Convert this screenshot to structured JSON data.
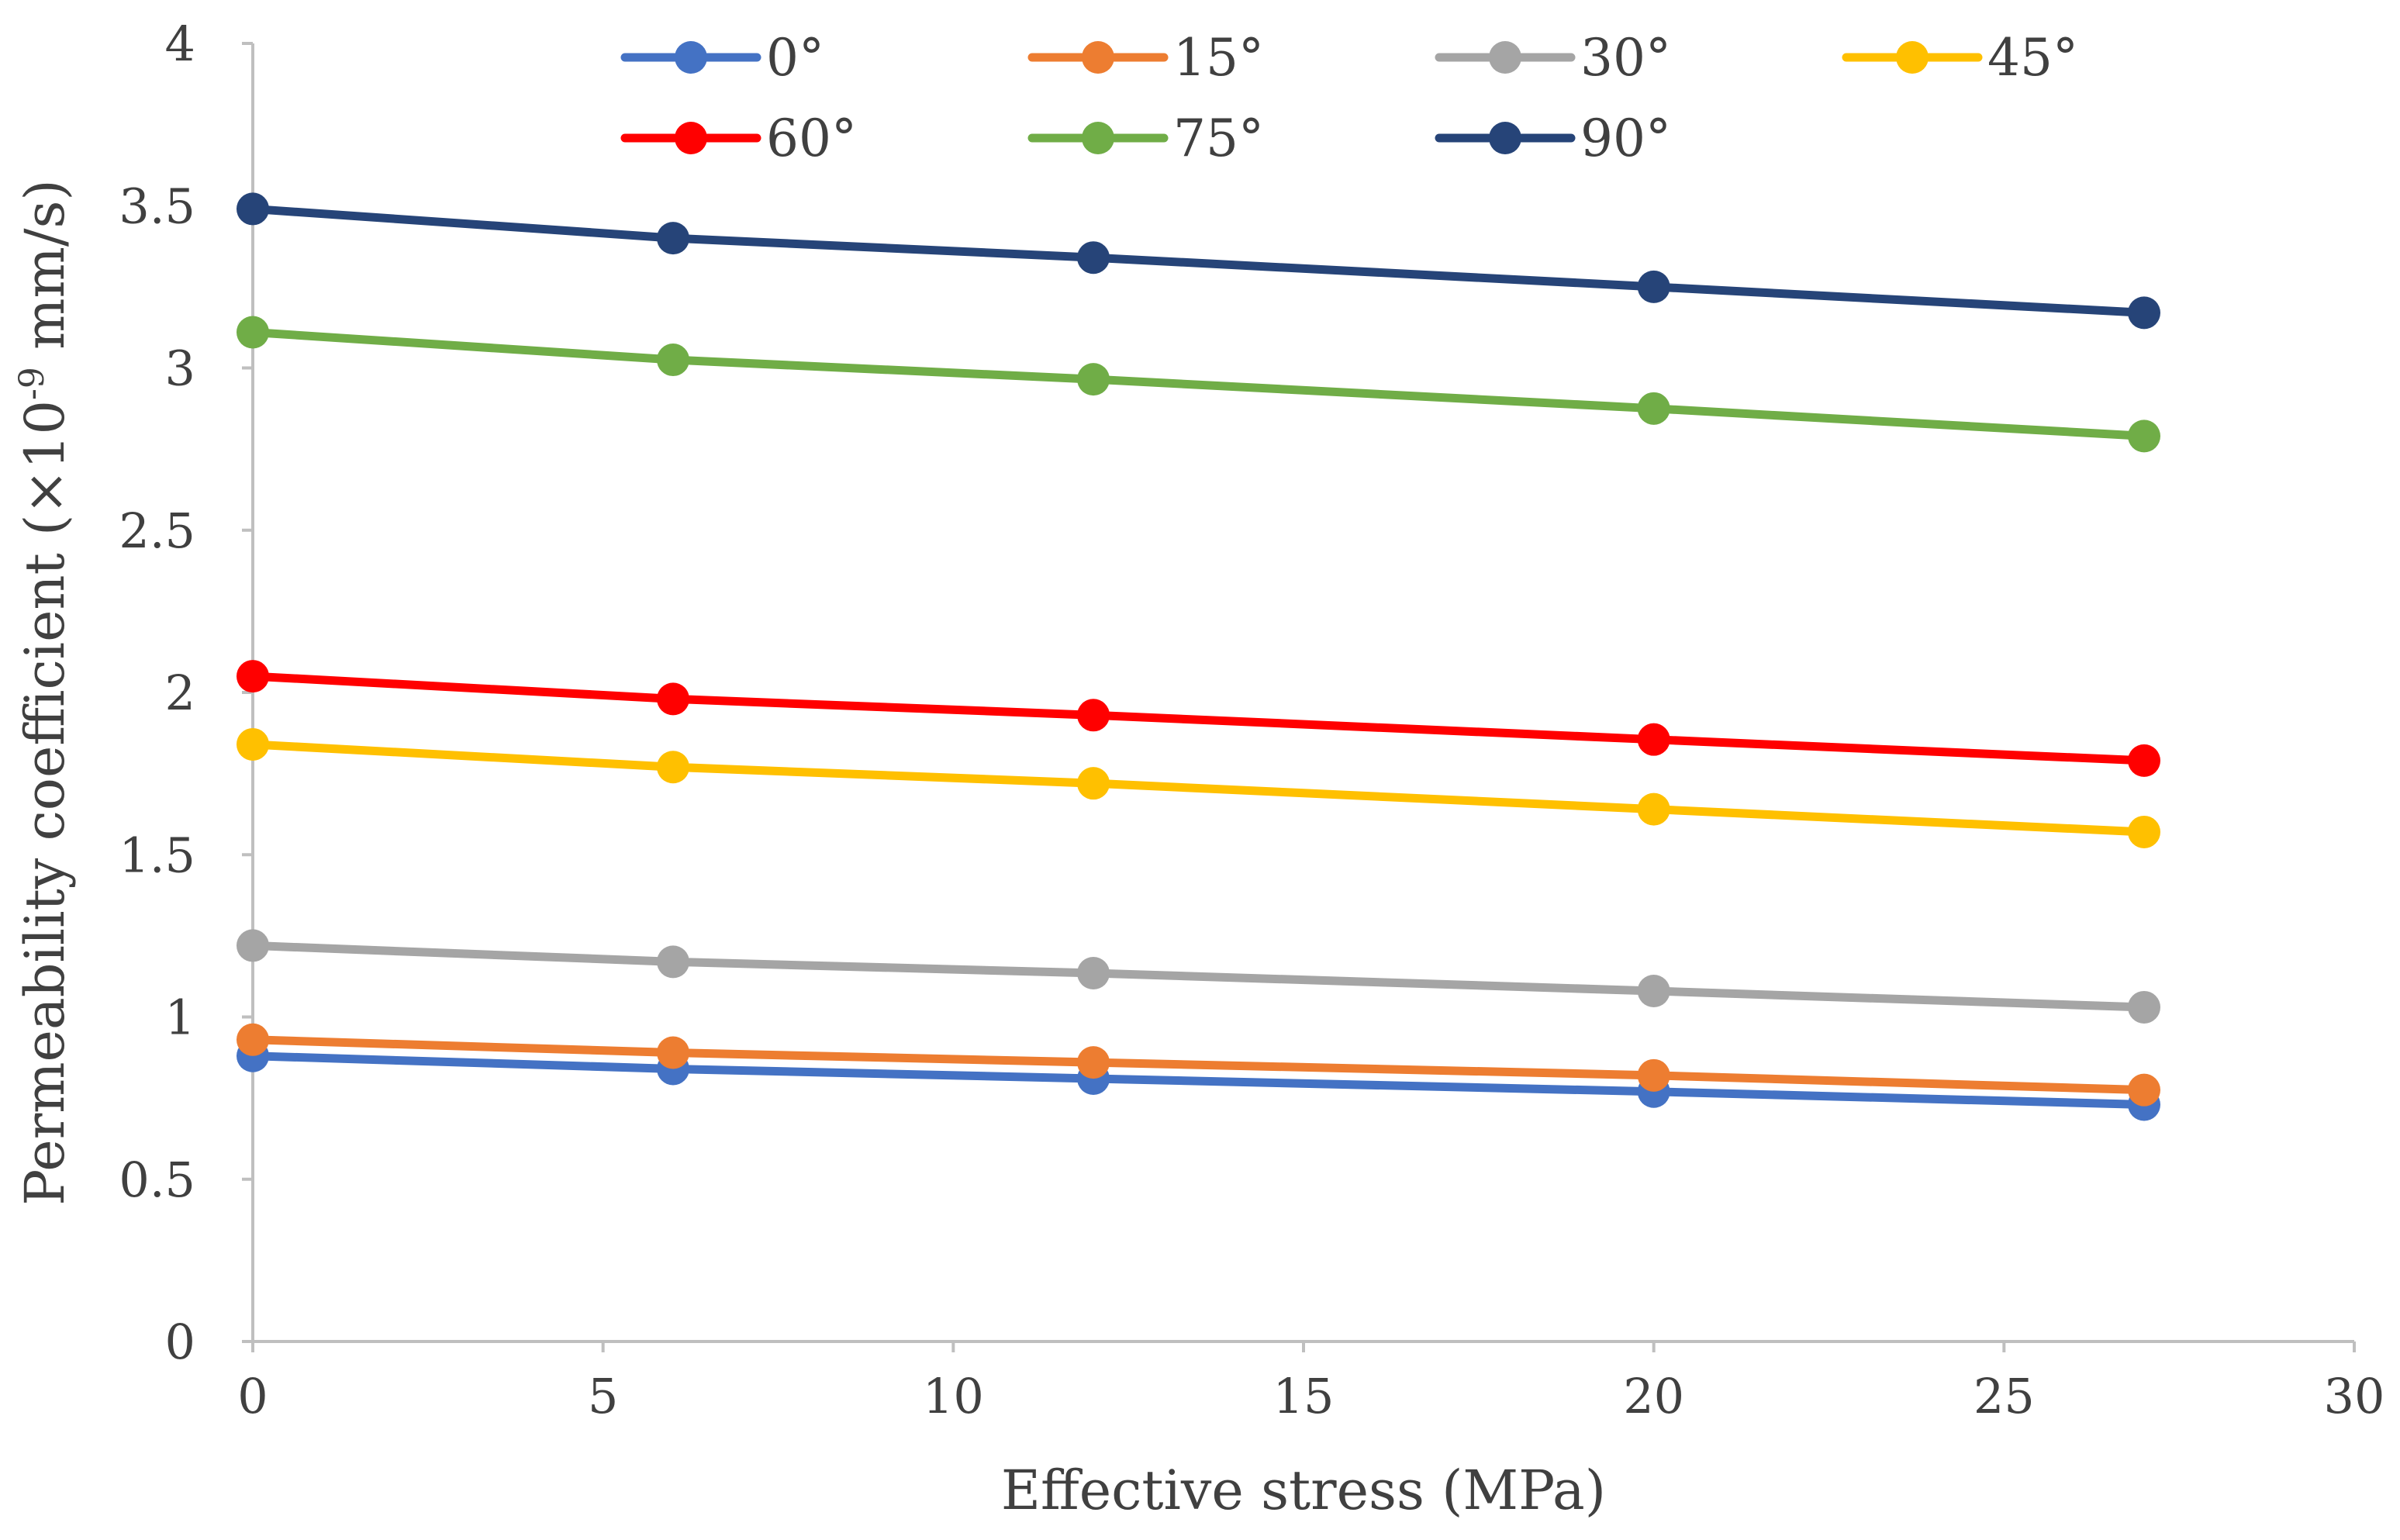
{
  "chart_data": {
    "type": "line",
    "title": "",
    "xlabel": "Effective stress (MPa)",
    "ylabel_main": "Permeability coefficient (×10",
    "ylabel_sup": "-9",
    "ylabel_tail": " mm/s)",
    "xlim": [
      0,
      30
    ],
    "ylim": [
      0,
      4
    ],
    "x_ticks": [
      0,
      5,
      10,
      15,
      20,
      25,
      30
    ],
    "y_ticks": [
      0,
      0.5,
      1,
      1.5,
      2,
      2.5,
      3,
      3.5,
      4
    ],
    "grid": false,
    "legend_position": "top",
    "x": [
      0,
      6,
      12,
      20,
      27
    ],
    "series": [
      {
        "name": "0°",
        "color": "#4472C4",
        "values": [
          0.88,
          0.84,
          0.81,
          0.77,
          0.73
        ]
      },
      {
        "name": "15°",
        "color": "#ED7D31",
        "values": [
          0.93,
          0.89,
          0.86,
          0.82,
          0.775
        ]
      },
      {
        "name": "30°",
        "color": "#A5A5A5",
        "values": [
          1.22,
          1.17,
          1.135,
          1.08,
          1.03
        ]
      },
      {
        "name": "45°",
        "color": "#FFC000",
        "values": [
          1.84,
          1.77,
          1.72,
          1.64,
          1.57
        ]
      },
      {
        "name": "60°",
        "color": "#FF0000",
        "values": [
          2.05,
          1.98,
          1.93,
          1.855,
          1.79
        ]
      },
      {
        "name": "75°",
        "color": "#70AD47",
        "values": [
          3.11,
          3.025,
          2.965,
          2.875,
          2.79
        ]
      },
      {
        "name": "90°",
        "color": "#264478",
        "values": [
          3.49,
          3.4,
          3.34,
          3.25,
          3.17
        ]
      }
    ]
  }
}
